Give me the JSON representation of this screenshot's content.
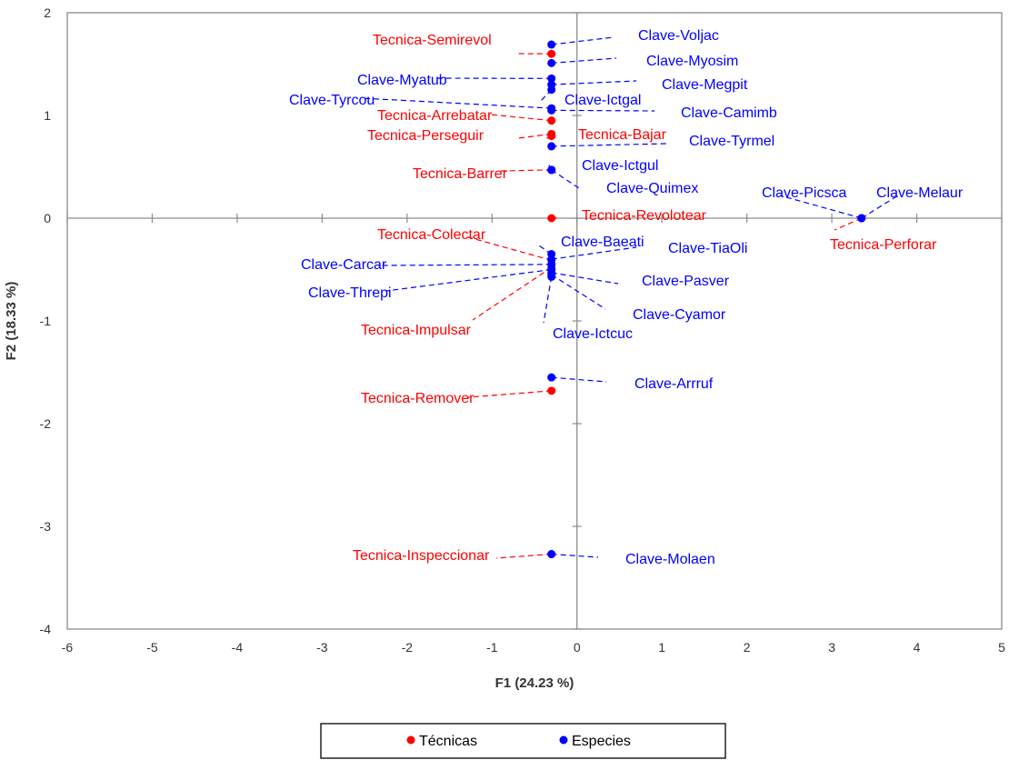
{
  "chart_data": {
    "type": "scatter",
    "title": "",
    "xlabel": "F1 (24.23 %)",
    "ylabel": "F2 (18.33 %)",
    "xlim": [
      -6,
      5
    ],
    "ylim": [
      -4,
      2
    ],
    "x_ticks": [
      "-6",
      "-5",
      "-4",
      "-3",
      "-2",
      "-1",
      "0",
      "1",
      "2",
      "3",
      "4",
      "5"
    ],
    "y_ticks": [
      "2",
      "1",
      "0",
      "-1",
      "-2",
      "-3",
      "-4"
    ],
    "grid": false,
    "legend_position": "bottom",
    "colors": {
      "tecnicas": "#ff0000",
      "especies": "#0000ff"
    },
    "series": [
      {
        "name": "Técnicas",
        "color": "#ff0000",
        "points": [
          {
            "label": "Tecnica-Semirevol",
            "x": -0.3,
            "y": 1.6
          },
          {
            "label": "Tecnica-Arrebatar",
            "x": -0.3,
            "y": 0.95
          },
          {
            "label": "Tecnica-Perseguir",
            "x": -0.3,
            "y": 0.82
          },
          {
            "label": "Tecnica-Bajar",
            "x": -0.3,
            "y": 0.8
          },
          {
            "label": "Tecnica-Barrer",
            "x": -0.3,
            "y": 0.47
          },
          {
            "label": "Tecnica-Revolotear",
            "x": -0.3,
            "y": 0.0
          },
          {
            "label": "Tecnica-Perforar",
            "x": 3.35,
            "y": 0.0
          },
          {
            "label": "Tecnica-Colectar",
            "x": -0.3,
            "y": -0.41
          },
          {
            "label": "Tecnica-Impulsar",
            "x": -0.3,
            "y": -0.48
          },
          {
            "label": "Tecnica-Remover",
            "x": -0.3,
            "y": -1.68
          },
          {
            "label": "Tecnica-Inspeccionar",
            "x": -0.3,
            "y": -3.27
          }
        ]
      },
      {
        "name": "Especies",
        "color": "#0000ff",
        "points": [
          {
            "label": "Clave-Voljac",
            "x": -0.3,
            "y": 1.69
          },
          {
            "label": "Clave-Myosim",
            "x": -0.3,
            "y": 1.51
          },
          {
            "label": "Clave-Myatub",
            "x": -0.3,
            "y": 1.36
          },
          {
            "label": "Clave-Megpit",
            "x": -0.3,
            "y": 1.3
          },
          {
            "label": "Clave-Ictgal",
            "x": -0.3,
            "y": 1.25
          },
          {
            "label": "Clave-Tyrcou",
            "x": -0.3,
            "y": 1.07
          },
          {
            "label": "Clave-Camimb",
            "x": -0.3,
            "y": 1.05
          },
          {
            "label": "Clave-Tyrmel",
            "x": -0.3,
            "y": 0.7
          },
          {
            "label": "Clave-Ictgul",
            "x": -0.3,
            "y": 0.47
          },
          {
            "label": "Clave-Quimex",
            "x": -0.3,
            "y": 0.47
          },
          {
            "label": "Clave-Picsca",
            "x": 3.35,
            "y": 0.0
          },
          {
            "label": "Clave-Melaur",
            "x": 3.35,
            "y": 0.0
          },
          {
            "label": "Clave-Baeati",
            "x": -0.3,
            "y": -0.35
          },
          {
            "label": "Clave-TiaOli",
            "x": -0.3,
            "y": -0.4
          },
          {
            "label": "Clave-Carcar",
            "x": -0.3,
            "y": -0.45
          },
          {
            "label": "Clave-Threpi",
            "x": -0.3,
            "y": -0.5
          },
          {
            "label": "Clave-Pasver",
            "x": -0.3,
            "y": -0.53
          },
          {
            "label": "Clave-Cyamor",
            "x": -0.3,
            "y": -0.55
          },
          {
            "label": "Clave-Ictcuc",
            "x": -0.3,
            "y": -0.57
          },
          {
            "label": "Clave-Arrruf",
            "x": -0.3,
            "y": -1.55
          },
          {
            "label": "Clave-Molaen",
            "x": -0.3,
            "y": -3.27
          }
        ]
      }
    ]
  }
}
